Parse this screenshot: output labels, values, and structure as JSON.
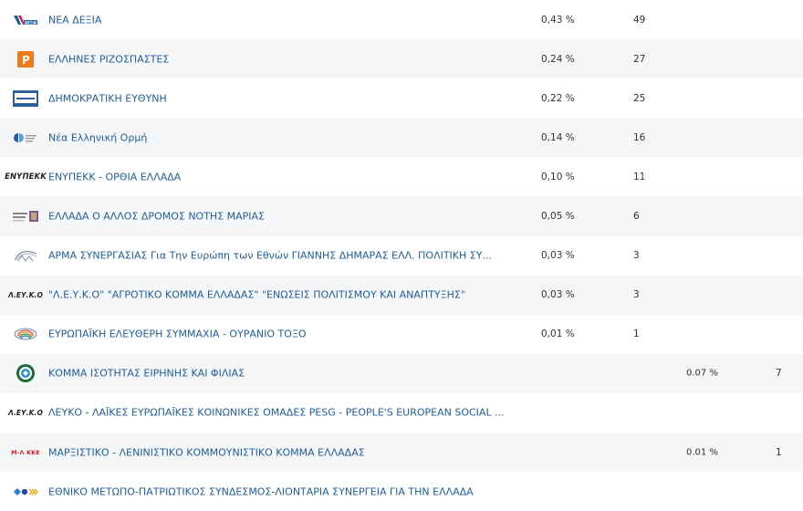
{
  "rows": [
    {
      "logo": "nea-dexia-logo",
      "logo_text": "ΝΕΑ ΔΕΞΙΑ",
      "name": "ΝΕΑ ΔΕΞΙΑ",
      "pct": "0,43 %",
      "seats": "49",
      "pct2": "",
      "seats2": ""
    },
    {
      "logo": "ellines-rizospastes-logo",
      "logo_text": "",
      "name": "ΕΛΛΗΝΕΣ ΡΙΖΟΣΠΑΣΤΕΣ",
      "pct": "0,24 %",
      "seats": "27",
      "pct2": "",
      "seats2": ""
    },
    {
      "logo": "dimokratiki-euthyni-logo",
      "logo_text": "",
      "name": "ΔΗΜΟΚΡΑΤΙΚΗ ΕΥΘΥΝΗ",
      "pct": "0,22 %",
      "seats": "25",
      "pct2": "",
      "seats2": ""
    },
    {
      "logo": "nea-elliniki-ormi-logo",
      "logo_text": "",
      "name": "Νέα Ελληνική Ορμή",
      "pct": "0,14 %",
      "seats": "16",
      "pct2": "",
      "seats2": ""
    },
    {
      "logo": "enypekk-logo",
      "logo_text": "ENYΠEKK",
      "name": "ΕΝΥΠΕΚΚ - ΟΡΘΙΑ ΕΛΛΑΔΑ",
      "pct": "0,10 %",
      "seats": "11",
      "pct2": "",
      "seats2": ""
    },
    {
      "logo": "ellada-allos-dromos-logo",
      "logo_text": "",
      "name": "ΕΛΛΑΔΑ Ο ΑΛΛΟΣ ΔΡΟΜΟΣ ΝΟΤΗΣ ΜΑΡΙΑΣ",
      "pct": "0,05 %",
      "seats": "6",
      "pct2": "",
      "seats2": ""
    },
    {
      "logo": "arma-synergasias-logo",
      "logo_text": "",
      "name": "ΑΡΜΑ ΣΥΝΕΡΓΑΣΙΑΣ Για Την Ευρώπη των Εθνών ΓΙΑΝΝΗΣ ΔΗΜΑΡΑΣ ΕΛΛ. ΠΟΛΙΤΙΚΗ ΣΥ...",
      "pct": "0,03 %",
      "seats": "3",
      "pct2": "",
      "seats2": ""
    },
    {
      "logo": "leyko-logo",
      "logo_text": "Λ.ΕΥ.Κ.Ο",
      "name": "\"Λ.Ε.Υ.Κ.Ο\" \"ΑΓΡΟΤΙΚΟ ΚΟΜΜΑ ΕΛΛΑΔΑΣ\" \"ΕΝΩΣΕΙΣ ΠΟΛΙΤΙΣΜΟΥ ΚΑΙ ΑΝΑΠΤΥΞΗΣ\"",
      "pct": "0,03 %",
      "seats": "3",
      "pct2": "",
      "seats2": ""
    },
    {
      "logo": "europaiki-eleftheri-logo",
      "logo_text": "",
      "name": "ΕΥΡΩΠΑΪΚΗ ΕΛΕΥΘΕΡΗ ΣΥΜΜΑΧΙΑ - ΟΥΡΑΝΙΟ ΤΟΞΟ",
      "pct": "0,01 %",
      "seats": "1",
      "pct2": "",
      "seats2": ""
    },
    {
      "logo": "komma-isotitas-logo",
      "logo_text": "",
      "name": "ΚΟΜΜΑ ΙΣΟΤΗΤΑΣ ΕΙΡΗΝΗΣ ΚΑΙ ΦΙΛΙΑΣ",
      "pct": "",
      "seats": "",
      "pct2": "0.07 %",
      "seats2": "7"
    },
    {
      "logo": "leyko-pesg-logo",
      "logo_text": "Λ.ΕΥ.Κ.Ο",
      "name": "ΛΕΥΚΟ - ΛΑΪΚΕΣ ΕΥΡΩΠΑΪΚΕΣ ΚΟΙΝΩΝΙΚΕΣ ΟΜΑΔΕΣ PESG - PEOPLE'S EUROPEAN SOCIAL ...",
      "pct": "",
      "seats": "",
      "pct2": "",
      "seats2": ""
    },
    {
      "logo": "ml-kke-logo",
      "logo_text": "Μ-Λ ΚΚΕ",
      "name": "ΜΑΡΞΙΣΤΙΚΟ - ΛΕΝΙΝΙΣΤΙΚΟ ΚΟΜΜΟΥΝΙΣΤΙΚΟ ΚΟΜΜΑ ΕΛΛΑΔΑΣ",
      "pct": "",
      "seats": "",
      "pct2": "0.01 %",
      "seats2": "1"
    },
    {
      "logo": "ethniko-metopo-logo",
      "logo_text": "",
      "name": "ΕΘΝΙΚΟ ΜΕΤΩΠΟ-ΠΑΤΡΙΩΤΙΚΟΣ ΣΥΝΔΕΣΜΟΣ-ΛΙΟΝΤΑΡΙΑ ΣΥΝΕΡΓΕΙΑ ΓΙΑ ΤΗΝ ΕΛΛΑΔΑ",
      "pct": "",
      "seats": "",
      "pct2": "",
      "seats2": ""
    }
  ]
}
